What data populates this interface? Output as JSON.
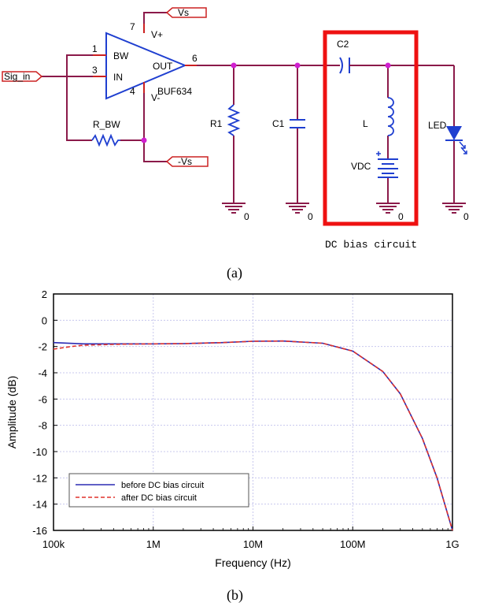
{
  "circuit": {
    "ports": {
      "vs_pos": "Vs",
      "vs_neg": "-Vs",
      "sig_in": "Sig_in"
    },
    "opamp": {
      "name": "BUF634",
      "pin_bw": "BW",
      "pin_in": "IN",
      "pin_out": "OUT",
      "pin_vplus": "V+",
      "pin_vminus": "V-",
      "num_1": "1",
      "num_3": "3",
      "num_4": "4",
      "num_6": "6",
      "num_7": "7"
    },
    "components": {
      "r_bw": "R_BW",
      "r1": "R1",
      "c1": "C1",
      "c2": "C2",
      "l": "L",
      "vdc": "VDC",
      "led": "LED"
    },
    "grounds": [
      "0",
      "0",
      "0",
      "0"
    ],
    "bias_box_label": "DC bias circuit",
    "caption": "(a)"
  },
  "chart_caption": "(b)",
  "colors": {
    "wire": "#8b1a4a",
    "component": "#1f3fd0",
    "bias_box": "#ee1111",
    "junction": "#d020d0",
    "port_border": "#cc2222",
    "series1": "#2b2bb3",
    "series2": "#e0322c",
    "grid": "#c8c8ee"
  },
  "chart_data": {
    "type": "line",
    "xlabel": "Frequency (Hz)",
    "ylabel": "Amplitude (dB)",
    "x_scale": "log",
    "xlim": [
      100000,
      1000000000
    ],
    "ylim": [
      -16,
      2
    ],
    "x_ticks": [
      {
        "value": 100000,
        "label": "100k"
      },
      {
        "value": 1000000,
        "label": "1M"
      },
      {
        "value": 10000000,
        "label": "10M"
      },
      {
        "value": 100000000,
        "label": "100M"
      },
      {
        "value": 1000000000,
        "label": "1G"
      }
    ],
    "y_ticks": [
      {
        "value": 2,
        "label": "2"
      },
      {
        "value": 0,
        "label": "0"
      },
      {
        "value": -2,
        "label": "-2"
      },
      {
        "value": -4,
        "label": "-4"
      },
      {
        "value": -6,
        "label": "-6"
      },
      {
        "value": -8,
        "label": "-8"
      },
      {
        "value": -10,
        "label": "-10"
      },
      {
        "value": -12,
        "label": "-12"
      },
      {
        "value": -14,
        "label": "-14"
      },
      {
        "value": -16,
        "label": "-16"
      }
    ],
    "grid": true,
    "legend_position": "bottom-left",
    "series": [
      {
        "name": "before DC bias circuit",
        "style": "solid",
        "x": [
          100000,
          200000,
          500000,
          1000000,
          2000000,
          5000000,
          10000000,
          20000000,
          50000000,
          100000000,
          200000000,
          300000000,
          500000000,
          700000000,
          1000000000
        ],
        "y": [
          -1.7,
          -1.8,
          -1.8,
          -1.8,
          -1.78,
          -1.7,
          -1.6,
          -1.58,
          -1.75,
          -2.35,
          -3.9,
          -5.6,
          -9.0,
          -12.0,
          -16.0
        ]
      },
      {
        "name": "after DC bias circuit",
        "style": "dashed",
        "x": [
          100000,
          150000,
          200000,
          500000,
          1000000,
          2000000,
          5000000,
          10000000,
          20000000,
          50000000,
          100000000,
          200000000,
          300000000,
          500000000,
          700000000,
          1000000000
        ],
        "y": [
          -2.2,
          -2.0,
          -1.9,
          -1.82,
          -1.8,
          -1.78,
          -1.7,
          -1.6,
          -1.58,
          -1.75,
          -2.35,
          -3.9,
          -5.6,
          -9.0,
          -12.0,
          -16.0
        ]
      }
    ]
  }
}
